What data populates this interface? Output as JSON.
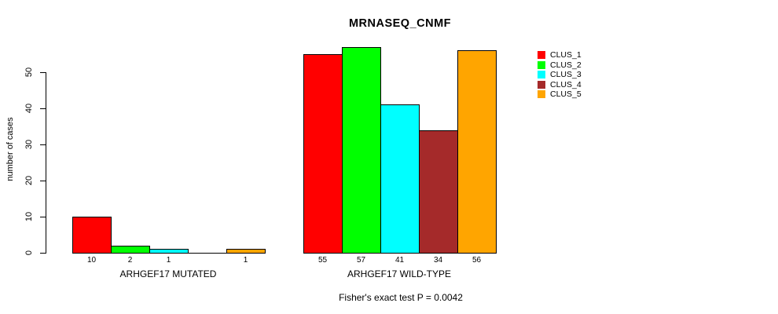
{
  "title": "MRNASEQ_CNMF",
  "subtitle": "Fisher's exact test P = 0.0042",
  "chart_data": {
    "type": "bar",
    "title": "MRNASEQ_CNMF",
    "xlabel": "",
    "ylabel": "number of cases",
    "ylim": [
      0,
      57
    ],
    "yticks": [
      0,
      10,
      20,
      30,
      40,
      50
    ],
    "grid": false,
    "legend_position": "right",
    "series": [
      {
        "name": "CLUS_1",
        "color": "#ff0000"
      },
      {
        "name": "CLUS_2",
        "color": "#00ff00"
      },
      {
        "name": "CLUS_3",
        "color": "#00ffff"
      },
      {
        "name": "CLUS_4",
        "color": "#a52a2a"
      },
      {
        "name": "CLUS_5",
        "color": "#ffa500"
      }
    ],
    "groups": [
      {
        "label": "ARHGEF17 MUTATED",
        "values": [
          10,
          2,
          1,
          0,
          1
        ]
      },
      {
        "label": "ARHGEF17 WILD-TYPE",
        "values": [
          55,
          57,
          41,
          34,
          56
        ]
      }
    ],
    "bar_value_labels_visible": true,
    "annotation": "Fisher's exact test P = 0.0042"
  }
}
